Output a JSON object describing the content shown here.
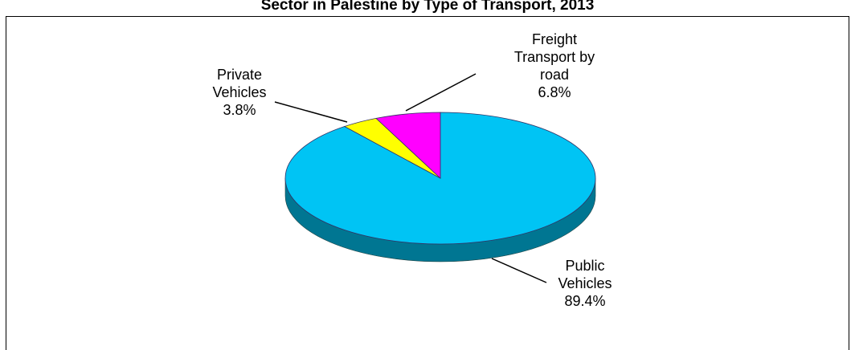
{
  "chart_data": {
    "type": "pie3d",
    "title": "Sector in Palestine by Type of Transport, 2013",
    "categories": [
      "Public Vehicles",
      "Private Vehicles",
      "Freight Transport by road"
    ],
    "values": [
      89.4,
      3.8,
      6.8
    ],
    "value_labels": [
      "89.4%",
      "3.8%",
      "6.8%"
    ],
    "colors": [
      "#00c4f4",
      "#ffff00",
      "#ff00ff"
    ]
  }
}
